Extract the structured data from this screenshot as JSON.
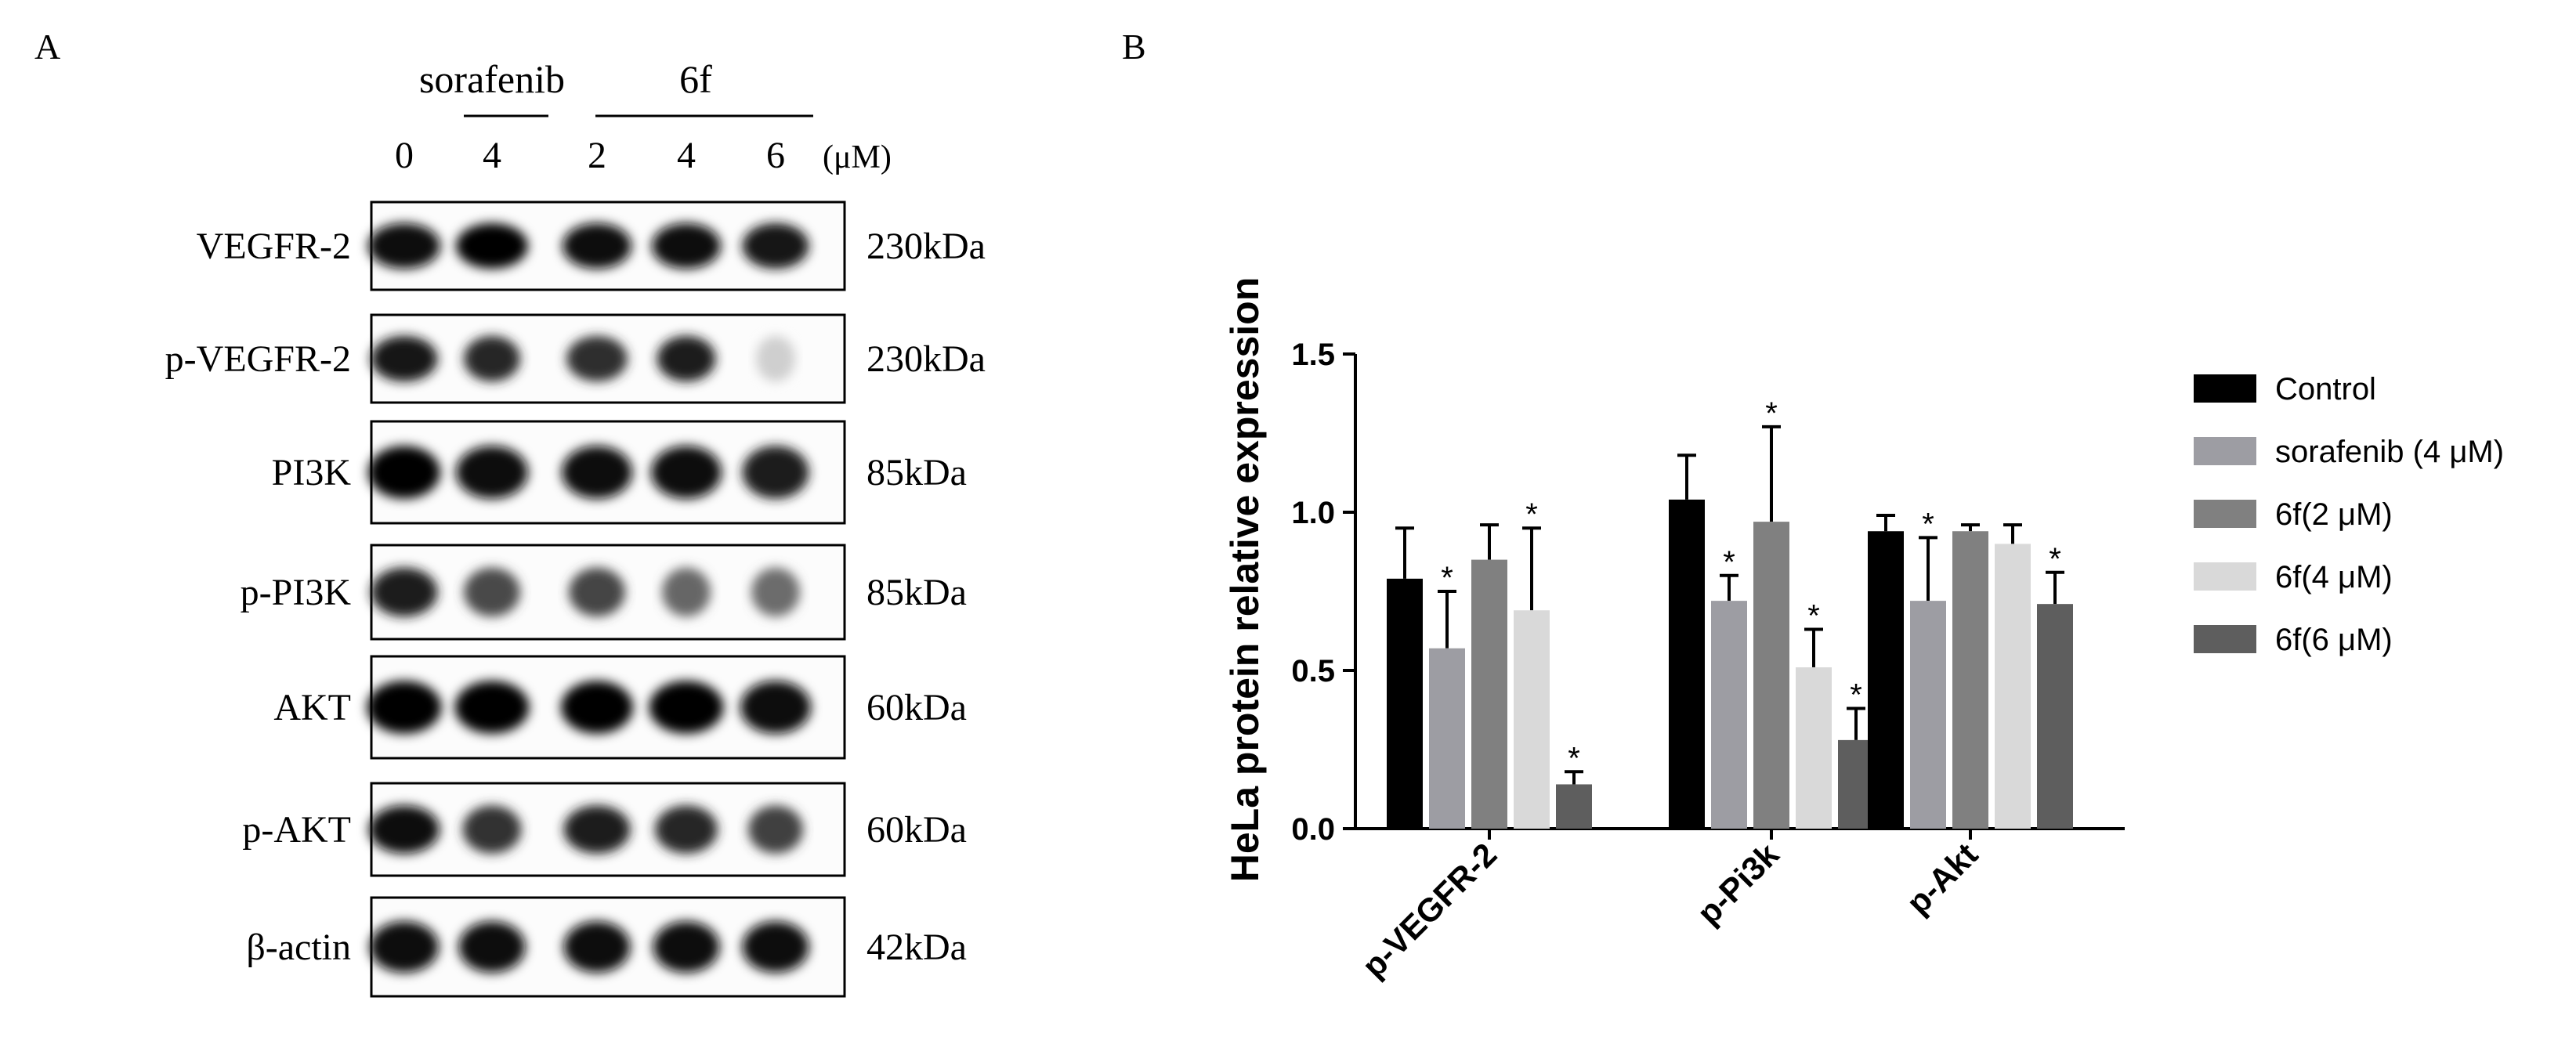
{
  "panel_a": {
    "label": "A",
    "group_labels": [
      "sorafenib",
      "6f"
    ],
    "lane_labels": [
      "0",
      "4",
      "2",
      "4",
      "6"
    ],
    "unit": "(μM)",
    "blots": [
      {
        "protein": "VEGFR-2",
        "size": "230kDa",
        "intensities": [
          0.95,
          1.0,
          0.95,
          0.95,
          0.92
        ],
        "widths": [
          0.92,
          0.92,
          0.88,
          0.88,
          0.85
        ]
      },
      {
        "protein": "p-VEGFR-2",
        "size": "230kDa",
        "intensities": [
          0.92,
          0.85,
          0.82,
          0.9,
          0.12
        ],
        "widths": [
          0.85,
          0.72,
          0.78,
          0.75,
          0.5
        ]
      },
      {
        "protein": "PI3K",
        "size": "85kDa",
        "intensities": [
          1.0,
          0.95,
          0.95,
          0.95,
          0.9
        ],
        "widths": [
          0.92,
          0.92,
          0.9,
          0.9,
          0.85
        ]
      },
      {
        "protein": "p-PI3K",
        "size": "85kDa",
        "intensities": [
          0.9,
          0.7,
          0.72,
          0.58,
          0.55
        ],
        "widths": [
          0.85,
          0.72,
          0.72,
          0.62,
          0.62
        ]
      },
      {
        "protein": "AKT",
        "size": "60kDa",
        "intensities": [
          1.0,
          1.0,
          1.0,
          1.0,
          0.95
        ],
        "widths": [
          0.95,
          0.95,
          0.92,
          0.95,
          0.9
        ]
      },
      {
        "protein": "p-AKT",
        "size": "60kDa",
        "intensities": [
          0.95,
          0.8,
          0.9,
          0.85,
          0.75
        ],
        "widths": [
          0.9,
          0.75,
          0.85,
          0.8,
          0.7
        ]
      },
      {
        "protein": "β-actin",
        "size": "42kDa",
        "intensities": [
          0.95,
          0.95,
          0.95,
          0.95,
          0.95
        ],
        "widths": [
          0.88,
          0.85,
          0.85,
          0.85,
          0.85
        ]
      }
    ]
  },
  "chart_data": {
    "panel_label": "B",
    "type": "bar",
    "title": "",
    "xlabel": "",
    "ylabel": "HeLa protein relative expression",
    "ylim": [
      0,
      1.5
    ],
    "yticks": [
      "0.0",
      "0.5",
      "1.0",
      "1.5"
    ],
    "categories": [
      "p-VEGFR-2",
      "p-Pi3k",
      "p-Akt"
    ],
    "series": [
      {
        "name": "Control",
        "color": "#000000",
        "values": [
          0.79,
          1.04,
          0.94
        ],
        "errors": [
          0.16,
          0.14,
          0.05
        ],
        "significant": [
          false,
          false,
          false
        ]
      },
      {
        "name": "sorafenib (4 μM)",
        "color": "#9d9da3",
        "values": [
          0.57,
          0.72,
          0.72
        ],
        "errors": [
          0.18,
          0.08,
          0.2
        ],
        "significant": [
          true,
          true,
          true
        ]
      },
      {
        "name": "6f(2 μM)",
        "color": "#808080",
        "values": [
          0.85,
          0.97,
          0.94
        ],
        "errors": [
          0.11,
          0.3,
          0.02
        ],
        "significant": [
          false,
          true,
          false
        ]
      },
      {
        "name": "6f(4 μM)",
        "color": "#d9d9d9",
        "values": [
          0.69,
          0.51,
          0.9
        ],
        "errors": [
          0.26,
          0.12,
          0.06
        ],
        "significant": [
          true,
          true,
          false
        ]
      },
      {
        "name": "6f(6 μM)",
        "color": "#5e5e5e",
        "values": [
          0.14,
          0.28,
          0.71
        ],
        "errors": [
          0.04,
          0.1,
          0.1
        ],
        "significant": [
          true,
          true,
          true
        ]
      }
    ],
    "significance_marker": "*",
    "legend_position": "right"
  }
}
